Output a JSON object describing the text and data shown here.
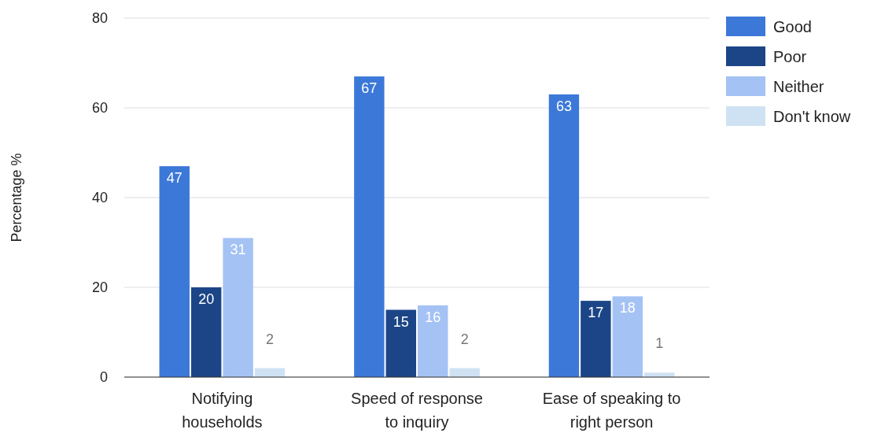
{
  "chart_data": {
    "type": "bar",
    "ylabel": "Percentage %",
    "categories": [
      "Notifying households",
      "Speed of response to inquiry",
      "Ease of speaking to right person"
    ],
    "series": [
      {
        "name": "Good",
        "color": "#3c78d8",
        "values": [
          47,
          67,
          63
        ]
      },
      {
        "name": "Poor",
        "color": "#1c4587",
        "values": [
          20,
          15,
          17
        ]
      },
      {
        "name": "Neither",
        "color": "#a4c2f4",
        "values": [
          31,
          16,
          18
        ]
      },
      {
        "name": "Don't know",
        "color": "#cfe2f3",
        "values": [
          2,
          2,
          1
        ]
      }
    ],
    "ylim": [
      0,
      80
    ],
    "yticks": [
      0,
      20,
      40,
      60,
      80
    ],
    "grid": "y",
    "legend": "right",
    "data_labels": true
  }
}
